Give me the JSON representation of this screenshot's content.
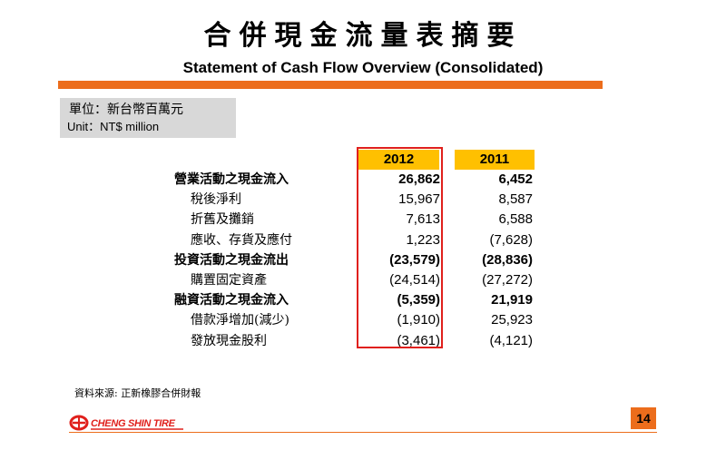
{
  "title_zh": "合併現金流量表摘要",
  "title_en": "Statement of Cash Flow Overview (Consolidated)",
  "unit": {
    "zh": "單位：新台幣百萬元",
    "en": "Unit：NT$ million"
  },
  "table": {
    "headers": [
      "2012",
      "2011"
    ],
    "rows": [
      {
        "label": "營業活動之現金流入",
        "v2012": "26,862",
        "v2011": "6,452",
        "bold": true
      },
      {
        "label": "稅後淨利",
        "v2012": "15,967",
        "v2011": "8,587",
        "bold": false
      },
      {
        "label": "折舊及攤銷",
        "v2012": "7,613",
        "v2011": "6,588",
        "bold": false
      },
      {
        "label": "應收、存貨及應付",
        "v2012": "1,223",
        "v2011": "(7,628)",
        "bold": false
      },
      {
        "label": "投資活動之現金流出",
        "v2012": "(23,579)",
        "v2011": "(28,836)",
        "bold": true
      },
      {
        "label": "購置固定資產",
        "v2012": "(24,514)",
        "v2011": "(27,272)",
        "bold": false
      },
      {
        "label": "融資活動之現金流入",
        "v2012": "(5,359)",
        "v2011": "21,919",
        "bold": true
      },
      {
        "label": "借款淨增加(減少)",
        "v2012": "(1,910)",
        "v2011": "25,923",
        "bold": false
      },
      {
        "label": "發放現金股利",
        "v2012": "(3,461)",
        "v2011": "(4,121)",
        "bold": false
      }
    ]
  },
  "source": "資料來源: 正新橡膠合併財報",
  "logo": {
    "text": "CHENG SHIN TIRE",
    "icon": "cheng-shin-logo-icon"
  },
  "page_number": "14",
  "colors": {
    "accent": "#ec6d1c",
    "header_fill": "#ffc000",
    "highlight_border": "#e0201c",
    "unit_box": "#d8d8d8"
  }
}
